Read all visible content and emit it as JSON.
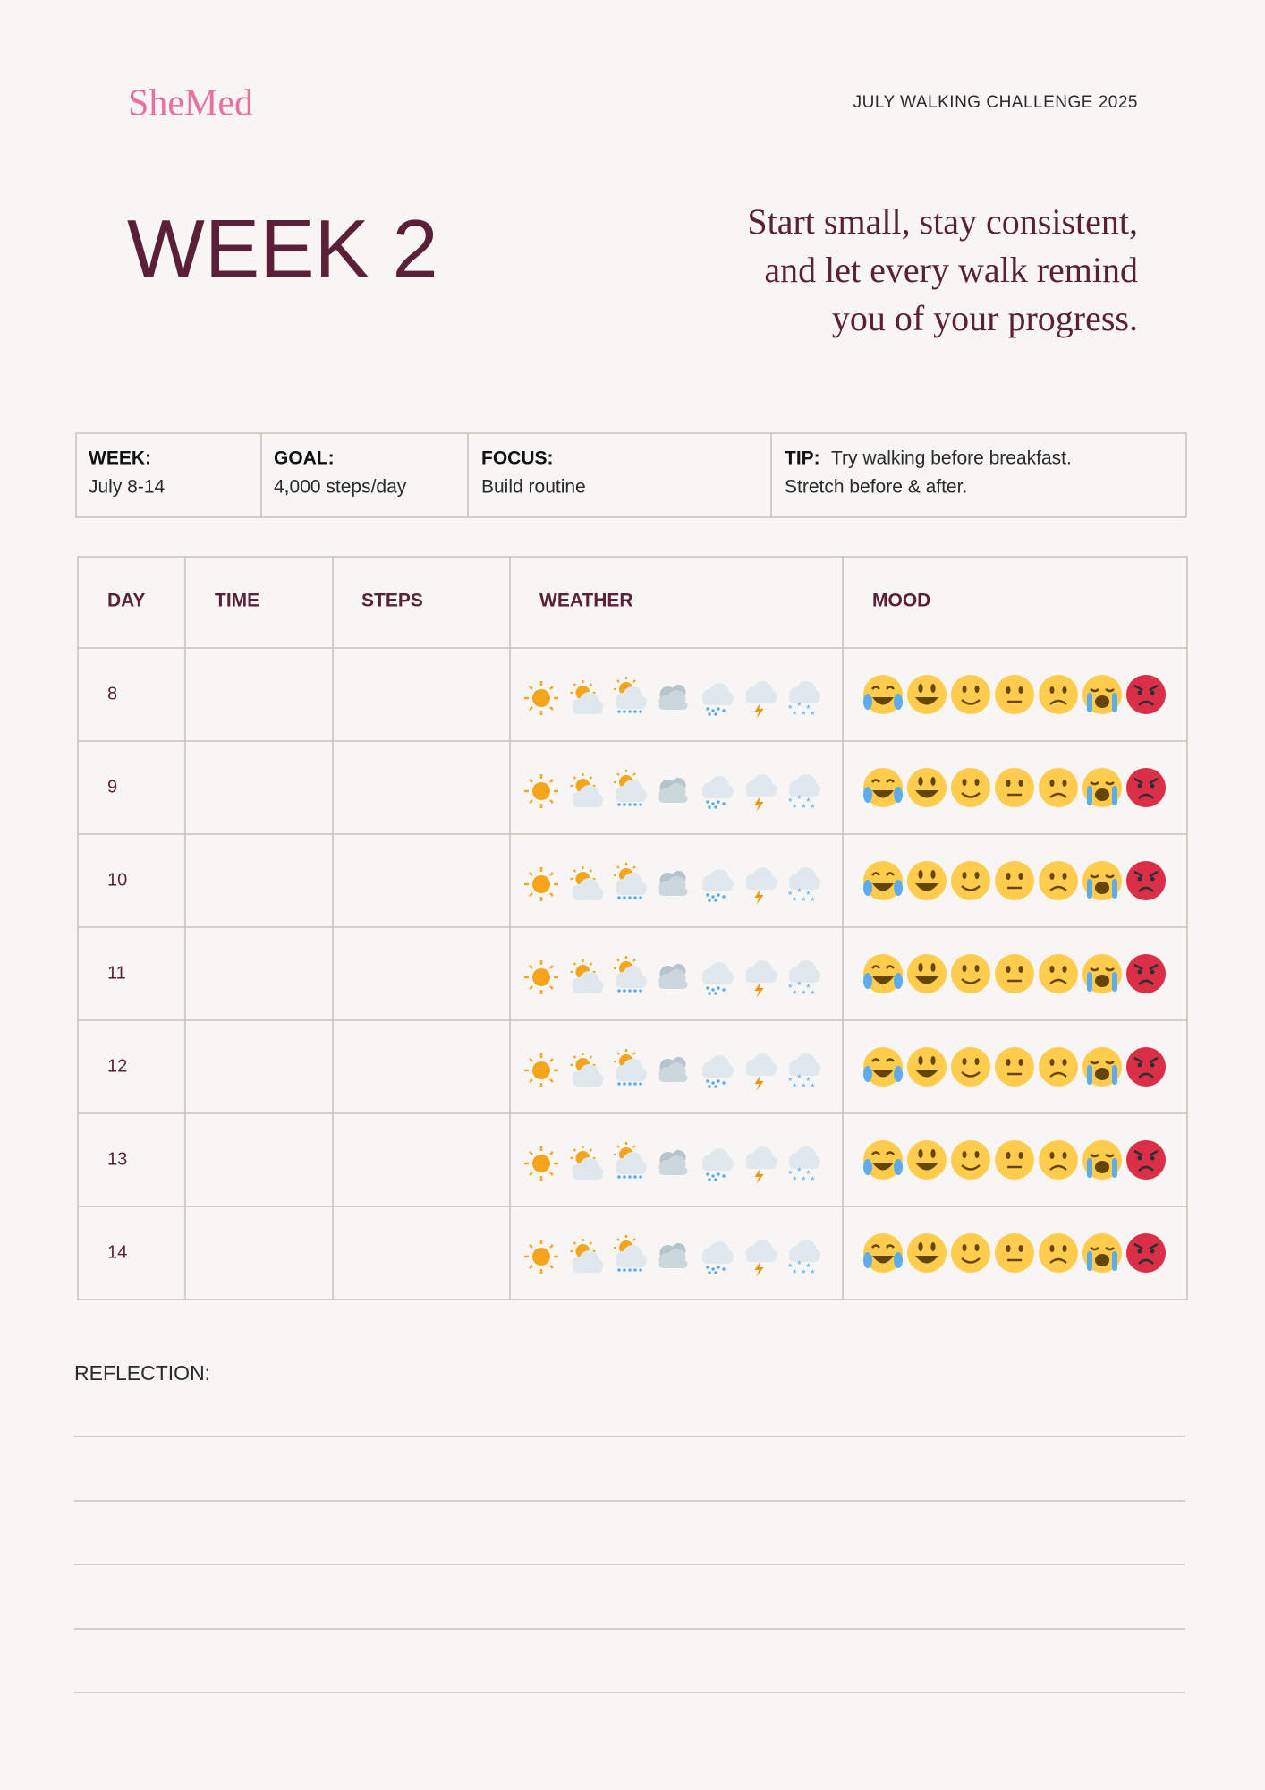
{
  "header": {
    "logo": "SheMed",
    "challenge": "JULY WALKING CHALLENGE 2025",
    "week_title": "WEEK 2",
    "quote": [
      "Start small, stay consistent,",
      "and let every walk remind",
      "you of your progress."
    ]
  },
  "info": [
    {
      "label": "WEEK:",
      "lines": [
        "July 8-14"
      ]
    },
    {
      "label": "GOAL:",
      "lines": [
        "4,000 steps/day"
      ]
    },
    {
      "label": "FOCUS:",
      "lines": [
        "Build routine"
      ]
    },
    {
      "label": "TIP:",
      "lines": [
        "Try walking before breakfast.",
        "Stretch before & after."
      ]
    }
  ],
  "table": {
    "headers": [
      "DAY",
      "TIME",
      "STEPS",
      "WEATHER",
      "MOOD"
    ],
    "days": [
      "8",
      "9",
      "10",
      "11",
      "12",
      "13",
      "14"
    ]
  },
  "reflection": {
    "label": "REFLECTION:"
  }
}
